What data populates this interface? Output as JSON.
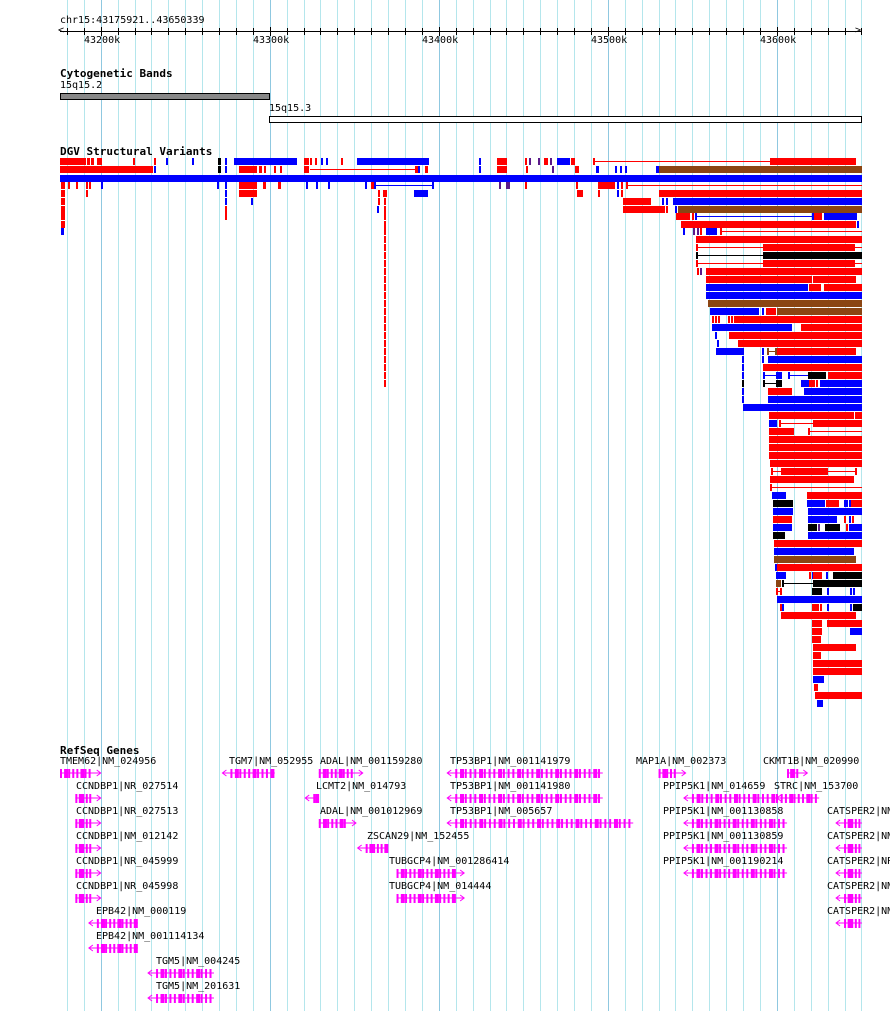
{
  "region": {
    "label": "chr15:43175921..43650339",
    "start": 43175921,
    "end": 43650339,
    "ticks": [
      "43200k",
      "43300k",
      "43400k",
      "43500k",
      "43600k"
    ],
    "tick_values": [
      43200000,
      43300000,
      43400000,
      43500000,
      43600000
    ]
  },
  "colors": {
    "loss": "#ff0000",
    "gain": "#0000ff",
    "inversion": "#000000",
    "complex": "#8b4513",
    "gene": "#ff00ff",
    "band_gpos": "#888888",
    "grid": "#b4e6ec"
  },
  "tracks": {
    "cytobands": {
      "title": "Cytogenetic Bands",
      "bands": [
        {
          "name": "15q15.2",
          "start": 43175921,
          "end": 43300000,
          "stain": "gpos"
        },
        {
          "name": "15q15.3",
          "start": 43300000,
          "end": 43650339,
          "stain": "gneg"
        }
      ]
    },
    "dgv": {
      "title": "DGV Structural Variants"
    },
    "refseq": {
      "title": "RefSeq Genes",
      "genes": [
        {
          "label": "TMEM62|NM_024956",
          "start": 43175921,
          "end": 43200000,
          "strand": "+"
        },
        {
          "label": "CCNDBP1|NR_027514",
          "start": 43185000,
          "end": 43200000,
          "strand": "+"
        },
        {
          "label": "CCNDBP1|NR_027513",
          "start": 43185000,
          "end": 43200000,
          "strand": "+"
        },
        {
          "label": "CCNDBP1|NM_012142",
          "start": 43185000,
          "end": 43200000,
          "strand": "+"
        },
        {
          "label": "CCNDBP1|NR_045999",
          "start": 43185000,
          "end": 43200000,
          "strand": "+"
        },
        {
          "label": "CCNDBP1|NR_045998",
          "start": 43185000,
          "end": 43200000,
          "strand": "+"
        },
        {
          "label": "EPB42|NM_000119",
          "start": 43193000,
          "end": 43222000,
          "strand": "-"
        },
        {
          "label": "EPB42|NM_001114134",
          "start": 43193000,
          "end": 43222000,
          "strand": "-"
        },
        {
          "label": "TGM5|NM_004245",
          "start": 43228000,
          "end": 43267000,
          "strand": "-"
        },
        {
          "label": "TGM5|NM_201631",
          "start": 43228000,
          "end": 43267000,
          "strand": "-"
        },
        {
          "label": "TGM7|NM_052955",
          "start": 43272000,
          "end": 43303000,
          "strand": "-"
        },
        {
          "label": "ADAL|NM_001159280",
          "start": 43329000,
          "end": 43355000,
          "strand": "+"
        },
        {
          "label": "LCMT2|NM_014793",
          "start": 43321000,
          "end": 43329000,
          "strand": "-"
        },
        {
          "label": "ADAL|NM_001012969",
          "start": 43329000,
          "end": 43351000,
          "strand": "+"
        },
        {
          "label": "ZSCAN29|NM_152455",
          "start": 43352000,
          "end": 43370000,
          "strand": "-"
        },
        {
          "label": "TUBGCP4|NM_001286414",
          "start": 43375000,
          "end": 43415000,
          "strand": "+"
        },
        {
          "label": "TUBGCP4|NM_014444",
          "start": 43375000,
          "end": 43415000,
          "strand": "+"
        },
        {
          "label": "TP53BP1|NM_001141979",
          "start": 43405000,
          "end": 43497000,
          "strand": "-"
        },
        {
          "label": "TP53BP1|NM_001141980",
          "start": 43405000,
          "end": 43497000,
          "strand": "-"
        },
        {
          "label": "TP53BP1|NM_005657",
          "start": 43405000,
          "end": 43515000,
          "strand": "-"
        },
        {
          "label": "MAP1A|NM_002373",
          "start": 43530000,
          "end": 43546000,
          "strand": "+"
        },
        {
          "label": "CKMT1B|NM_020990",
          "start": 43606000,
          "end": 43618000,
          "strand": "+"
        },
        {
          "label": "PPIP5K1|NM_014659",
          "start": 43545000,
          "end": 43605000,
          "strand": "-"
        },
        {
          "label": "STRC|NM_153700",
          "start": 43600000,
          "end": 43625000,
          "strand": "-"
        },
        {
          "label": "PPIP5K1|NM_001130858",
          "start": 43545000,
          "end": 43606000,
          "strand": "-"
        },
        {
          "label": "PPIP5K1|NM_001130859",
          "start": 43545000,
          "end": 43606000,
          "strand": "-"
        },
        {
          "label": "PPIP5K1|NM_001190214",
          "start": 43545000,
          "end": 43606000,
          "strand": "-"
        },
        {
          "label": "CATSPER2|NM",
          "start": 43635000,
          "end": 43650339,
          "strand": "-"
        },
        {
          "label": "CATSPER2|NM",
          "start": 43635000,
          "end": 43650339,
          "strand": "-"
        },
        {
          "label": "CATSPER2|NR",
          "start": 43635000,
          "end": 43650339,
          "strand": "-"
        },
        {
          "label": "CATSPER2|NM",
          "start": 43635000,
          "end": 43650339,
          "strand": "-"
        },
        {
          "label": "CATSPER2|NM",
          "start": 43635000,
          "end": 43650339,
          "strand": "-"
        }
      ]
    }
  }
}
